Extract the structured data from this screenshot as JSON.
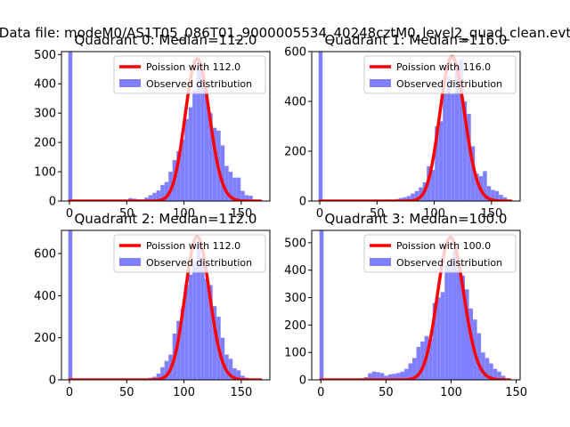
{
  "figure": {
    "suptitle": "Data file: modeM0/AS1T05_086T01_9000005534_40248cztM0_level2_quad_clean.evt"
  },
  "colors": {
    "histogram": "#8080ff",
    "poisson_line": "#ff0000",
    "axis": "#000000",
    "legend_border": "#cccccc"
  },
  "chart_data": [
    {
      "type": "histogram",
      "title": "Quadrant 0: Median=112.0",
      "median": 112.0,
      "xlim": [
        -7,
        175
      ],
      "ylim": [
        0,
        510
      ],
      "xticks": [
        0,
        50,
        100,
        150
      ],
      "yticks": [
        0,
        100,
        200,
        300,
        400,
        500
      ],
      "bin_width": 3.5,
      "bins": [
        [
          -1.0,
          510
        ],
        [
          2.5,
          0
        ],
        [
          6.0,
          0
        ],
        [
          9.5,
          0
        ],
        [
          13.0,
          0
        ],
        [
          16.5,
          0
        ],
        [
          20.0,
          0
        ],
        [
          23.5,
          0
        ],
        [
          27.0,
          0
        ],
        [
          30.5,
          0
        ],
        [
          34.0,
          1
        ],
        [
          37.5,
          0
        ],
        [
          41.0,
          2
        ],
        [
          44.5,
          1
        ],
        [
          48.0,
          3
        ],
        [
          51.5,
          10
        ],
        [
          55.0,
          8
        ],
        [
          58.5,
          6
        ],
        [
          62.0,
          5
        ],
        [
          65.5,
          12
        ],
        [
          69.0,
          20
        ],
        [
          72.5,
          28
        ],
        [
          76.0,
          36
        ],
        [
          79.5,
          55
        ],
        [
          83.0,
          65
        ],
        [
          86.5,
          100
        ],
        [
          90.0,
          140
        ],
        [
          93.5,
          170
        ],
        [
          97.0,
          210
        ],
        [
          100.5,
          280
        ],
        [
          104.0,
          320
        ],
        [
          107.5,
          380
        ],
        [
          111.0,
          460
        ],
        [
          114.5,
          440
        ],
        [
          118.0,
          390
        ],
        [
          121.5,
          300
        ],
        [
          125.0,
          250
        ],
        [
          128.5,
          240
        ],
        [
          132.0,
          190
        ],
        [
          135.5,
          120
        ],
        [
          139.0,
          100
        ],
        [
          142.5,
          80
        ],
        [
          146.0,
          80
        ],
        [
          149.5,
          35
        ],
        [
          153.0,
          20
        ],
        [
          156.5,
          18
        ],
        [
          160.0,
          5
        ],
        [
          163.5,
          2
        ]
      ],
      "series": [
        {
          "name": "Poission with 112.0",
          "mean": 112.0,
          "peak": 485
        },
        {
          "name": "Observed distribution"
        }
      ],
      "legend": [
        "Poission with 112.0",
        "Observed distribution"
      ],
      "legend_position": "upper right"
    },
    {
      "type": "histogram",
      "title": "Quadrant 1: Median=116.0",
      "median": 116.0,
      "xlim": [
        -7,
        175
      ],
      "ylim": [
        0,
        600
      ],
      "xticks": [
        0,
        50,
        100,
        150
      ],
      "yticks": [
        0,
        200,
        400,
        600
      ],
      "bin_width": 3.5,
      "bins": [
        [
          -1.0,
          600
        ],
        [
          2.5,
          0
        ],
        [
          6.0,
          0
        ],
        [
          9.5,
          0
        ],
        [
          13.0,
          0
        ],
        [
          16.5,
          0
        ],
        [
          20.0,
          0
        ],
        [
          23.5,
          0
        ],
        [
          27.0,
          0
        ],
        [
          30.5,
          0
        ],
        [
          34.0,
          0
        ],
        [
          37.5,
          1
        ],
        [
          41.0,
          0
        ],
        [
          44.5,
          1
        ],
        [
          48.0,
          2
        ],
        [
          51.5,
          2
        ],
        [
          55.0,
          4
        ],
        [
          58.5,
          6
        ],
        [
          62.0,
          4
        ],
        [
          65.5,
          8
        ],
        [
          69.0,
          12
        ],
        [
          72.5,
          15
        ],
        [
          76.0,
          20
        ],
        [
          79.5,
          30
        ],
        [
          83.0,
          40
        ],
        [
          86.5,
          55
        ],
        [
          90.0,
          75
        ],
        [
          93.5,
          140
        ],
        [
          97.0,
          125
        ],
        [
          100.5,
          300
        ],
        [
          104.0,
          320
        ],
        [
          107.5,
          430
        ],
        [
          111.0,
          500
        ],
        [
          114.5,
          430
        ],
        [
          118.0,
          520
        ],
        [
          121.5,
          570
        ],
        [
          125.0,
          400
        ],
        [
          128.5,
          350
        ],
        [
          132.0,
          220
        ],
        [
          135.5,
          110
        ],
        [
          139.0,
          100
        ],
        [
          142.5,
          120
        ],
        [
          146.0,
          60
        ],
        [
          149.5,
          45
        ],
        [
          153.0,
          40
        ],
        [
          156.5,
          25
        ],
        [
          160.0,
          15
        ],
        [
          163.5,
          5
        ]
      ],
      "series": [
        {
          "name": "Poission with 116.0",
          "mean": 116.0,
          "peak": 580
        },
        {
          "name": "Observed distribution"
        }
      ],
      "legend": [
        "Poission with 116.0",
        "Observed distribution"
      ],
      "legend_position": "upper right"
    },
    {
      "type": "histogram",
      "title": "Quadrant 2: Median=112.0",
      "median": 112.0,
      "xlim": [
        -7,
        175
      ],
      "ylim": [
        0,
        710
      ],
      "xticks": [
        0,
        50,
        100,
        150
      ],
      "yticks": [
        0,
        200,
        400,
        600
      ],
      "bin_width": 3.5,
      "bins": [
        [
          -1.0,
          710
        ],
        [
          2.5,
          0
        ],
        [
          6.0,
          0
        ],
        [
          9.5,
          0
        ],
        [
          13.0,
          0
        ],
        [
          16.5,
          0
        ],
        [
          20.0,
          0
        ],
        [
          23.5,
          0
        ],
        [
          27.0,
          0
        ],
        [
          30.5,
          0
        ],
        [
          34.0,
          0
        ],
        [
          37.5,
          0
        ],
        [
          41.0,
          1
        ],
        [
          44.5,
          0
        ],
        [
          48.0,
          1
        ],
        [
          51.5,
          2
        ],
        [
          55.0,
          2
        ],
        [
          58.5,
          3
        ],
        [
          62.0,
          4
        ],
        [
          65.5,
          5
        ],
        [
          69.0,
          10
        ],
        [
          72.5,
          15
        ],
        [
          76.0,
          30
        ],
        [
          79.5,
          60
        ],
        [
          83.0,
          90
        ],
        [
          86.5,
          120
        ],
        [
          90.0,
          220
        ],
        [
          93.5,
          280
        ],
        [
          97.0,
          340
        ],
        [
          100.5,
          450
        ],
        [
          104.0,
          500
        ],
        [
          107.5,
          560
        ],
        [
          111.0,
          660
        ],
        [
          114.5,
          580
        ],
        [
          118.0,
          480
        ],
        [
          121.5,
          450
        ],
        [
          125.0,
          350
        ],
        [
          128.5,
          300
        ],
        [
          132.0,
          200
        ],
        [
          135.5,
          120
        ],
        [
          139.0,
          100
        ],
        [
          142.5,
          55
        ],
        [
          146.0,
          45
        ],
        [
          149.5,
          20
        ],
        [
          153.0,
          10
        ],
        [
          156.5,
          5
        ],
        [
          160.0,
          2
        ],
        [
          163.5,
          1
        ]
      ],
      "series": [
        {
          "name": "Poission with 112.0",
          "mean": 112.0,
          "peak": 680
        },
        {
          "name": "Observed distribution"
        }
      ],
      "legend": [
        "Poission with 112.0",
        "Observed distribution"
      ],
      "legend_position": "upper right"
    },
    {
      "type": "histogram",
      "title": "Quadrant 3: Median=100.0",
      "median": 100.0,
      "xlim": [
        -7,
        153
      ],
      "ylim": [
        0,
        545
      ],
      "xticks": [
        0,
        50,
        100,
        150
      ],
      "yticks": [
        0,
        100,
        200,
        300,
        400,
        500
      ],
      "bin_width": 3.1,
      "bins": [
        [
          -1.0,
          545
        ],
        [
          2.1,
          0
        ],
        [
          5.2,
          0
        ],
        [
          8.3,
          0
        ],
        [
          11.4,
          0
        ],
        [
          14.5,
          0
        ],
        [
          17.6,
          0
        ],
        [
          20.7,
          1
        ],
        [
          23.8,
          2
        ],
        [
          26.9,
          3
        ],
        [
          30.0,
          6
        ],
        [
          33.1,
          10
        ],
        [
          36.2,
          24
        ],
        [
          39.3,
          30
        ],
        [
          42.4,
          28
        ],
        [
          45.5,
          25
        ],
        [
          48.6,
          15
        ],
        [
          51.7,
          20
        ],
        [
          54.8,
          22
        ],
        [
          57.9,
          25
        ],
        [
          61.0,
          30
        ],
        [
          64.1,
          40
        ],
        [
          67.2,
          60
        ],
        [
          70.3,
          80
        ],
        [
          73.4,
          120
        ],
        [
          76.5,
          140
        ],
        [
          79.6,
          160
        ],
        [
          82.7,
          150
        ],
        [
          85.8,
          280
        ],
        [
          88.9,
          300
        ],
        [
          92.0,
          320
        ],
        [
          95.1,
          420
        ],
        [
          98.2,
          430
        ],
        [
          101.3,
          470
        ],
        [
          104.4,
          400
        ],
        [
          107.5,
          380
        ],
        [
          110.6,
          330
        ],
        [
          113.7,
          260
        ],
        [
          116.8,
          220
        ],
        [
          119.9,
          170
        ],
        [
          123.0,
          100
        ],
        [
          126.1,
          80
        ],
        [
          129.2,
          60
        ],
        [
          132.3,
          40
        ],
        [
          135.4,
          30
        ],
        [
          138.5,
          15
        ],
        [
          141.6,
          5
        ]
      ],
      "series": [
        {
          "name": "Poission with 100.0",
          "mean": 100.0,
          "peak": 520
        },
        {
          "name": "Observed distribution"
        }
      ],
      "legend": [
        "Poission with 100.0",
        "Observed distribution"
      ],
      "legend_position": "upper right"
    }
  ]
}
